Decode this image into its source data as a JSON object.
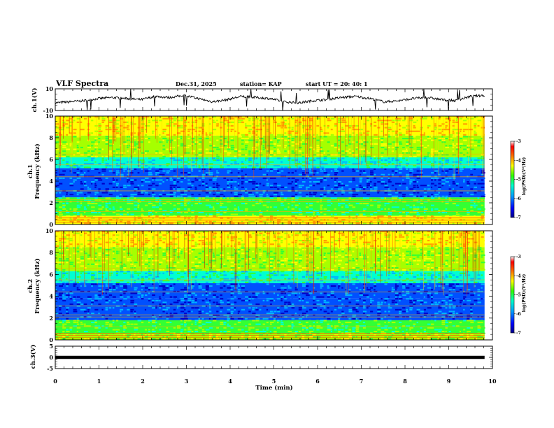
{
  "header": {
    "title": "VLF Spectra",
    "date": "Dec.31, 2025",
    "station": "station= KAP",
    "start_ut": "start  UT  =   20: 40: 1"
  },
  "colors": {
    "spectrogram_scale": [
      "#0000cc",
      "#0066ff",
      "#00ccff",
      "#00ff99",
      "#33ff00",
      "#ccff00",
      "#ffff00",
      "#ff9900",
      "#ff2200",
      "#cc0000"
    ],
    "trace": "#000000",
    "frame": "#000000"
  },
  "chart_data": [
    {
      "name": "ch1-voltage",
      "type": "line",
      "ylabel": "ch.1(V)",
      "ylim": [
        -10,
        10
      ],
      "yticks": [
        "10",
        "-10"
      ],
      "xlim": [
        0,
        10
      ],
      "x_range_min": [
        0,
        9.82
      ],
      "series": [
        {
          "name": "ch.1",
          "values_description_free": true,
          "approx_level": [
            -3,
            -2,
            -1,
            1,
            2,
            1,
            0,
            3,
            2,
            4,
            1,
            -2,
            0,
            3,
            2,
            1,
            -2,
            -3,
            -1,
            0,
            2,
            3,
            1,
            -2,
            -1,
            1,
            2,
            0,
            -1,
            3,
            4
          ]
        }
      ]
    },
    {
      "name": "ch1-spectrogram",
      "type": "heatmap",
      "ylabel_line1": "ch.1",
      "ylabel_line2": "Frequency (kHz)",
      "xlim": [
        0,
        10
      ],
      "ylim": [
        0,
        10
      ],
      "yticks": [
        "0",
        "2",
        "4",
        "6",
        "8",
        "10"
      ],
      "data_end_min": 9.82,
      "colorbar": {
        "label": "log(PSD)(V²/Hz)",
        "ticks": [
          "-3",
          "-4",
          "-5",
          "-6",
          "-7"
        ],
        "range": [
          -7,
          -3
        ]
      },
      "bands_khz": [
        {
          "from": 0,
          "to": 0.8,
          "level": 6
        },
        {
          "from": 0.8,
          "to": 2.5,
          "level": 4
        },
        {
          "from": 2.5,
          "to": 5.2,
          "level": 1
        },
        {
          "from": 5.2,
          "to": 6.2,
          "level": 3
        },
        {
          "from": 6.2,
          "to": 8.2,
          "level": 5
        },
        {
          "from": 8.2,
          "to": 10,
          "level": 6
        }
      ]
    },
    {
      "name": "ch2-spectrogram",
      "type": "heatmap",
      "ylabel_line1": "ch.2",
      "ylabel_line2": "Frequency (kHz)",
      "xlim": [
        0,
        10
      ],
      "ylim": [
        0,
        10
      ],
      "yticks": [
        "0",
        "2",
        "4",
        "6",
        "8",
        "10"
      ],
      "data_end_min": 9.82,
      "colorbar": {
        "label": "log(PSD)(V²/Hz)",
        "ticks": [
          "-3",
          "-4",
          "-5",
          "-6",
          "-7"
        ],
        "range": [
          -7,
          -3
        ]
      },
      "bands_khz": [
        {
          "from": 0,
          "to": 0.6,
          "level": 5
        },
        {
          "from": 0.6,
          "to": 1.8,
          "level": 4
        },
        {
          "from": 1.8,
          "to": 3.8,
          "level": 1
        },
        {
          "from": 3.8,
          "to": 5.2,
          "level": 1
        },
        {
          "from": 5.2,
          "to": 6.3,
          "level": 3
        },
        {
          "from": 6.3,
          "to": 8.5,
          "level": 5
        },
        {
          "from": 8.5,
          "to": 10,
          "level": 6
        }
      ]
    },
    {
      "name": "ch3-voltage",
      "type": "line",
      "ylabel": "ch.3(V)",
      "ylim": [
        -5,
        5
      ],
      "yticks": [
        "5",
        "0",
        "-5"
      ],
      "xlim": [
        0,
        10
      ],
      "series": [
        {
          "name": "ch.3",
          "constant_value": 0,
          "thickness_volts": 1.4
        }
      ],
      "xlabel": "Time  (min)",
      "xticks": [
        "0",
        "1",
        "2",
        "3",
        "4",
        "5",
        "6",
        "7",
        "8",
        "9",
        "10"
      ]
    }
  ]
}
